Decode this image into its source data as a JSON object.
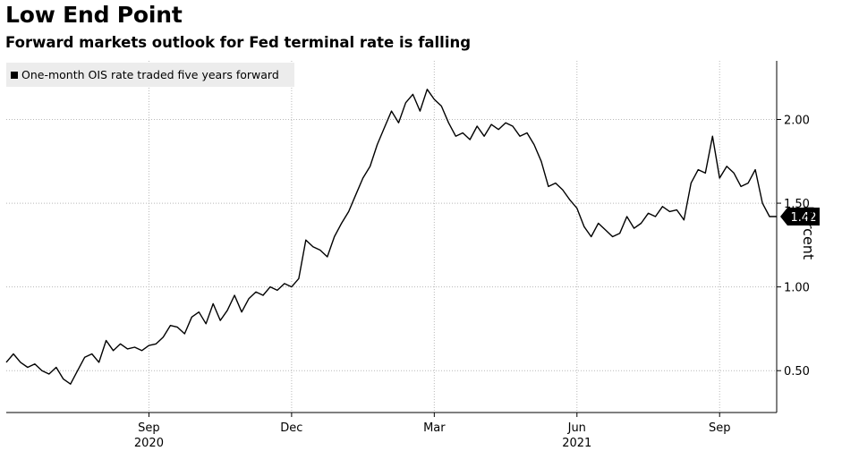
{
  "title": "Low End Point",
  "subtitle": "Forward markets outlook for Fed terminal rate is falling",
  "chart_data": {
    "type": "line",
    "legend": [
      "One-month OIS rate traded five years forward"
    ],
    "ylabel": "Percent",
    "ylim": [
      0.25,
      2.35
    ],
    "yticks": [
      0.5,
      1.0,
      1.5,
      2.0
    ],
    "ytick_labels": [
      "0.50",
      "1.00",
      "1.50",
      "2.00"
    ],
    "xlim": [
      0,
      16.2
    ],
    "xticks": [
      {
        "x": 3.0,
        "label": "Sep"
      },
      {
        "x": 6.0,
        "label": "Dec"
      },
      {
        "x": 9.0,
        "label": "Mar"
      },
      {
        "x": 12.0,
        "label": "Jun"
      },
      {
        "x": 15.0,
        "label": "Sep"
      }
    ],
    "year_labels": [
      {
        "x": 3.0,
        "label": "2020"
      },
      {
        "x": 12.0,
        "label": "2021"
      }
    ],
    "last_value": "1.42",
    "series": [
      {
        "name": "One-month OIS rate traded five years forward",
        "x": [
          0,
          0.15,
          0.3,
          0.45,
          0.6,
          0.75,
          0.9,
          1.05,
          1.2,
          1.35,
          1.5,
          1.65,
          1.8,
          1.95,
          2.1,
          2.25,
          2.4,
          2.55,
          2.7,
          2.85,
          3.0,
          3.15,
          3.3,
          3.45,
          3.6,
          3.75,
          3.9,
          4.05,
          4.2,
          4.35,
          4.5,
          4.65,
          4.8,
          4.95,
          5.1,
          5.25,
          5.4,
          5.55,
          5.7,
          5.85,
          6.0,
          6.15,
          6.3,
          6.45,
          6.6,
          6.75,
          6.9,
          7.05,
          7.2,
          7.35,
          7.5,
          7.65,
          7.8,
          7.95,
          8.1,
          8.25,
          8.4,
          8.55,
          8.7,
          8.85,
          9.0,
          9.15,
          9.3,
          9.45,
          9.6,
          9.75,
          9.9,
          10.05,
          10.2,
          10.35,
          10.5,
          10.65,
          10.8,
          10.95,
          11.1,
          11.25,
          11.4,
          11.55,
          11.7,
          11.85,
          12.0,
          12.15,
          12.3,
          12.45,
          12.6,
          12.75,
          12.9,
          13.05,
          13.2,
          13.35,
          13.5,
          13.65,
          13.8,
          13.95,
          14.1,
          14.25,
          14.4,
          14.55,
          14.7,
          14.85,
          15.0,
          15.15,
          15.3,
          15.45,
          15.6,
          15.75,
          15.9,
          16.05,
          16.2
        ],
        "values": [
          0.55,
          0.6,
          0.55,
          0.52,
          0.54,
          0.5,
          0.48,
          0.52,
          0.45,
          0.42,
          0.5,
          0.58,
          0.6,
          0.55,
          0.68,
          0.62,
          0.66,
          0.63,
          0.64,
          0.62,
          0.65,
          0.66,
          0.7,
          0.77,
          0.76,
          0.72,
          0.82,
          0.85,
          0.78,
          0.9,
          0.8,
          0.86,
          0.95,
          0.85,
          0.93,
          0.97,
          0.95,
          1.0,
          0.98,
          1.02,
          1.0,
          1.05,
          1.28,
          1.24,
          1.22,
          1.18,
          1.3,
          1.38,
          1.45,
          1.55,
          1.65,
          1.72,
          1.85,
          1.95,
          2.05,
          1.98,
          2.1,
          2.15,
          2.05,
          2.18,
          2.12,
          2.08,
          1.98,
          1.9,
          1.92,
          1.88,
          1.96,
          1.9,
          1.97,
          1.94,
          1.98,
          1.96,
          1.9,
          1.92,
          1.85,
          1.75,
          1.6,
          1.62,
          1.58,
          1.52,
          1.47,
          1.36,
          1.3,
          1.38,
          1.34,
          1.3,
          1.32,
          1.42,
          1.35,
          1.38,
          1.44,
          1.42,
          1.48,
          1.45,
          1.46,
          1.4,
          1.62,
          1.7,
          1.68,
          1.9,
          1.65,
          1.72,
          1.68,
          1.6,
          1.62,
          1.7,
          1.5,
          1.42,
          1.42
        ]
      }
    ]
  }
}
